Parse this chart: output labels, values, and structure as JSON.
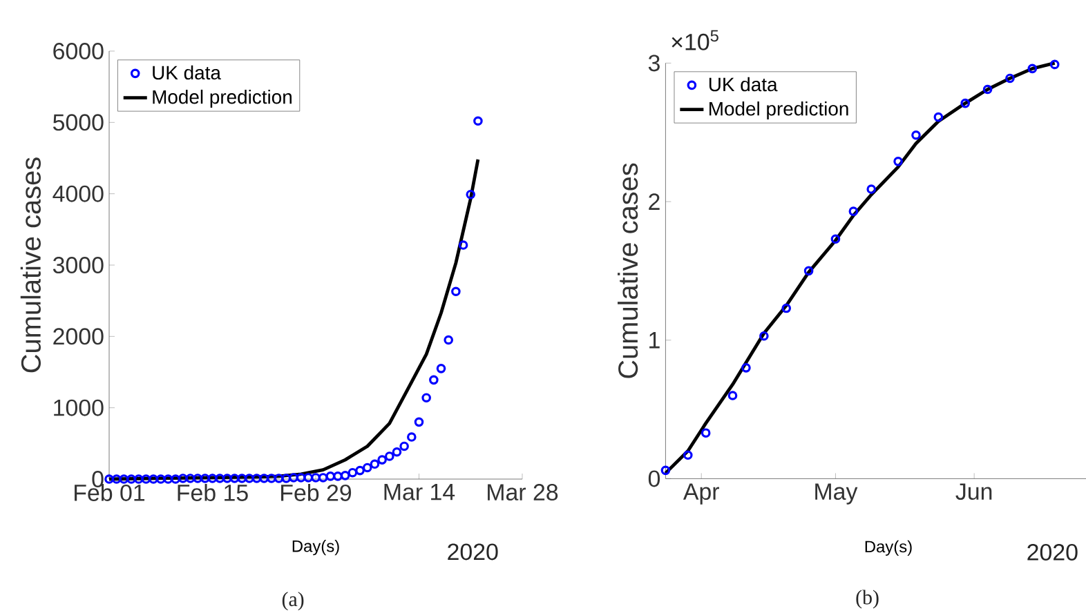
{
  "chart_data": [
    {
      "type": "scatter",
      "xlabel": "Day(s)",
      "ylabel": "Cumulative cases",
      "xlim": [
        "2020-02-01",
        "2020-03-28"
      ],
      "xticks": [
        {
          "value": "2020-02-01",
          "label": "Feb 01"
        },
        {
          "value": "2020-02-15",
          "label": "Feb 15"
        },
        {
          "value": "2020-02-29",
          "label": "Feb 29"
        },
        {
          "value": "2020-03-14",
          "label": "Mar 14"
        },
        {
          "value": "2020-03-28",
          "label": "Mar 28"
        }
      ],
      "ylim": [
        0,
        6000
      ],
      "yticks": [
        0,
        1000,
        2000,
        3000,
        4000,
        5000,
        6000
      ],
      "legend": "top left",
      "annotations": [
        "2020",
        "(a)"
      ],
      "series": [
        {
          "name": "UK data",
          "marker": "circle",
          "color": "#0000ff",
          "x": [
            "2020-02-01",
            "2020-02-02",
            "2020-02-03",
            "2020-02-04",
            "2020-02-05",
            "2020-02-06",
            "2020-02-07",
            "2020-02-08",
            "2020-02-09",
            "2020-02-10",
            "2020-02-11",
            "2020-02-12",
            "2020-02-13",
            "2020-02-14",
            "2020-02-15",
            "2020-02-16",
            "2020-02-17",
            "2020-02-18",
            "2020-02-19",
            "2020-02-20",
            "2020-02-21",
            "2020-02-22",
            "2020-02-23",
            "2020-02-24",
            "2020-02-25",
            "2020-02-26",
            "2020-02-27",
            "2020-02-28",
            "2020-02-29",
            "2020-03-01",
            "2020-03-02",
            "2020-03-03",
            "2020-03-04",
            "2020-03-05",
            "2020-03-06",
            "2020-03-07",
            "2020-03-08",
            "2020-03-09",
            "2020-03-10",
            "2020-03-11",
            "2020-03-12",
            "2020-03-13",
            "2020-03-14",
            "2020-03-15",
            "2020-03-16",
            "2020-03-17",
            "2020-03-18",
            "2020-03-19",
            "2020-03-20",
            "2020-03-21",
            "2020-03-22"
          ],
          "values": [
            0,
            0,
            0,
            0,
            0,
            0,
            0,
            0,
            0,
            0,
            10,
            10,
            10,
            10,
            10,
            10,
            10,
            10,
            10,
            10,
            10,
            10,
            10,
            10,
            10,
            20,
            20,
            20,
            20,
            20,
            40,
            40,
            50,
            90,
            120,
            160,
            210,
            270,
            320,
            380,
            460,
            590,
            800,
            1140,
            1390,
            1550,
            1950,
            2630,
            3280,
            3990,
            5020
          ]
        },
        {
          "name": "Model prediction",
          "type": "line",
          "color": "#000000",
          "x": [
            "2020-02-01",
            "2020-02-08",
            "2020-02-15",
            "2020-02-21",
            "2020-02-24",
            "2020-02-27",
            "2020-03-01",
            "2020-03-04",
            "2020-03-07",
            "2020-03-10",
            "2020-03-13",
            "2020-03-15",
            "2020-03-17",
            "2020-03-19",
            "2020-03-21",
            "2020-03-22"
          ],
          "values": [
            0,
            10,
            20,
            30,
            40,
            70,
            130,
            270,
            460,
            780,
            1360,
            1750,
            2330,
            3030,
            3930,
            4480
          ]
        }
      ]
    },
    {
      "type": "scatter",
      "xlabel": "Day(s)",
      "ylabel": "Cumulative cases",
      "xlim": [
        "2020-03-24",
        "2020-06-26"
      ],
      "xticks": [
        {
          "value": "2020-04-01",
          "label": "Apr"
        },
        {
          "value": "2020-05-01",
          "label": "May"
        },
        {
          "value": "2020-06-01",
          "label": "Jun"
        }
      ],
      "ylim": [
        0,
        3
      ],
      "yticks": [
        0,
        1,
        2,
        3
      ],
      "legend": "top left",
      "annotations": [
        "×10$^{5}$",
        "2020",
        "(b)"
      ],
      "series": [
        {
          "name": "UK data",
          "marker": "circle",
          "color": "#0000ff",
          "x": [
            "2020-03-24",
            "2020-03-29",
            "2020-04-02",
            "2020-04-08",
            "2020-04-11",
            "2020-04-15",
            "2020-04-20",
            "2020-04-25",
            "2020-05-01",
            "2020-05-05",
            "2020-05-09",
            "2020-05-15",
            "2020-05-19",
            "2020-05-24",
            "2020-05-30",
            "2020-06-04",
            "2020-06-09",
            "2020-06-14",
            "2020-06-19"
          ],
          "values": [
            0.06,
            0.17,
            0.33,
            0.6,
            0.8,
            1.03,
            1.23,
            1.5,
            1.73,
            1.93,
            2.09,
            2.29,
            2.48,
            2.61,
            2.71,
            2.81,
            2.89,
            2.96,
            2.99
          ]
        },
        {
          "name": "Model prediction",
          "type": "line",
          "color": "#000000",
          "x": [
            "2020-03-24",
            "2020-03-29",
            "2020-04-02",
            "2020-04-08",
            "2020-04-15",
            "2020-04-20",
            "2020-04-25",
            "2020-05-01",
            "2020-05-05",
            "2020-05-09",
            "2020-05-15",
            "2020-05-19",
            "2020-05-24",
            "2020-05-30",
            "2020-06-04",
            "2020-06-09",
            "2020-06-14",
            "2020-06-19"
          ],
          "values": [
            0.04,
            0.2,
            0.4,
            0.68,
            1.05,
            1.25,
            1.49,
            1.72,
            1.9,
            2.05,
            2.25,
            2.42,
            2.58,
            2.71,
            2.81,
            2.89,
            2.96,
            3.0
          ]
        }
      ]
    }
  ]
}
